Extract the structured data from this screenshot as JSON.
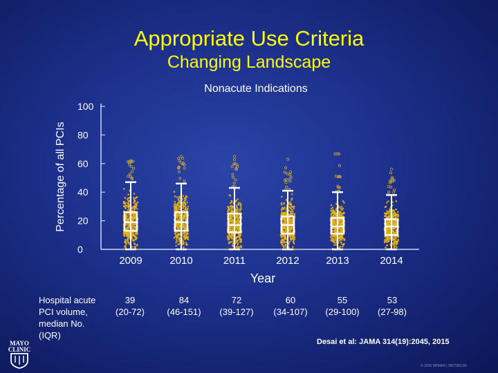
{
  "slide": {
    "title": "Appropriate Use Criteria",
    "subtitle": "Changing Landscape",
    "citation": "Desai et al: JAMA 314(19):2045, 2015",
    "footer": "© 2016 MFMER | 3507983-80",
    "logo_text": [
      "MAYO",
      "CLINIC"
    ]
  },
  "colors": {
    "background": "#1c2f8a",
    "title": "#ffff00",
    "points": "#e8b318",
    "box": "#ffffff"
  },
  "chart_data": {
    "type": "box",
    "title": "Nonacute Indications",
    "xlabel": "Year",
    "ylabel": "Percentage of all PCIs",
    "ylim": [
      0,
      100
    ],
    "yticks": [
      0,
      20,
      40,
      60,
      80,
      100
    ],
    "categories": [
      "2009",
      "2010",
      "2011",
      "2012",
      "2013",
      "2014"
    ],
    "boxes": [
      {
        "year": "2009",
        "min": 0,
        "q1": 13,
        "median": 19,
        "q3": 26,
        "max": 47
      },
      {
        "year": "2010",
        "min": 0,
        "q1": 13,
        "median": 19,
        "q3": 26,
        "max": 46
      },
      {
        "year": "2011",
        "min": 0,
        "q1": 12,
        "median": 17,
        "q3": 25,
        "max": 43
      },
      {
        "year": "2012",
        "min": 0,
        "q1": 11,
        "median": 17,
        "q3": 23,
        "max": 41
      },
      {
        "year": "2013",
        "min": 0,
        "q1": 11,
        "median": 16,
        "q3": 22,
        "max": 40
      },
      {
        "year": "2014",
        "min": 0,
        "q1": 10,
        "median": 16,
        "q3": 21,
        "max": 38
      }
    ],
    "outlier_max": [
      62,
      65,
      65,
      63,
      67,
      56
    ]
  },
  "volume": {
    "label_lines": [
      "Hospital acute",
      "PCI volume,",
      "median No.",
      "(IQR)"
    ],
    "medians": [
      "39",
      "84",
      "72",
      "60",
      "55",
      "53"
    ],
    "iqr": [
      "(20-72)",
      "(46-151)",
      "(39-127)",
      "(34-107)",
      "(29-100)",
      "(27-98)"
    ]
  }
}
